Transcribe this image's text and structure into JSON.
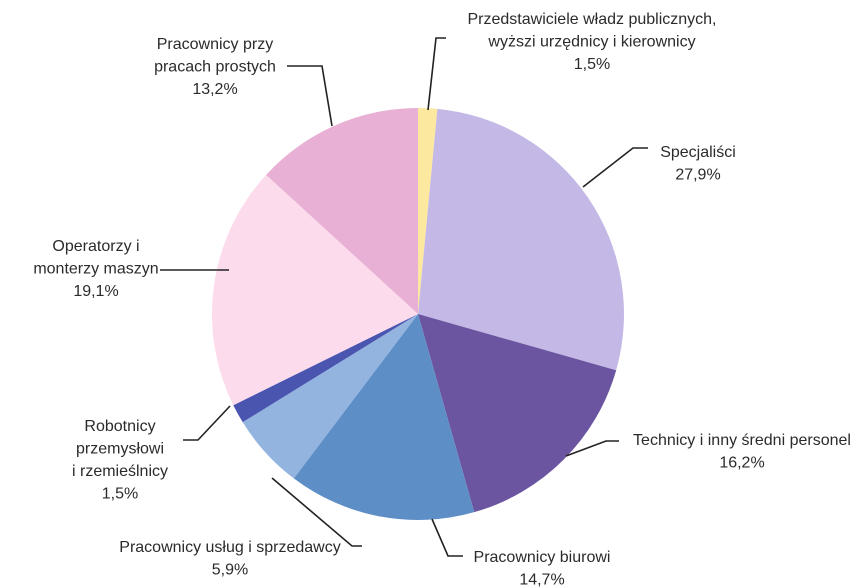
{
  "chart_data": {
    "type": "pie",
    "categories": [
      [
        "Przedstawiciele władz publicznych,",
        "wyższi urzędnicy i kierownicy"
      ],
      [
        "Specjaliści"
      ],
      [
        "Technicy i inny średni personel"
      ],
      [
        "Pracownicy biurowi"
      ],
      [
        "Pracownicy usług i sprzedawcy"
      ],
      [
        "Robotnicy",
        "przemysłowi",
        "i rzemieślnicy"
      ],
      [
        "Operatorzy i",
        "monterzy maszyn"
      ],
      [
        "Pracownicy przy",
        "pracach prostych"
      ]
    ],
    "values": [
      1.5,
      27.9,
      16.2,
      14.7,
      5.9,
      1.5,
      19.1,
      13.2
    ],
    "value_labels": [
      "1,5%",
      "27,9%",
      "16,2%",
      "14,7%",
      "5,9%",
      "1,5%",
      "19,1%",
      "13,2%"
    ],
    "colors": [
      "#fde8a0",
      "#c4b9e6",
      "#6b55a0",
      "#5e8ec6",
      "#94b4e0",
      "#4a55b0",
      "#fcdcec",
      "#e8b0d4"
    ]
  }
}
